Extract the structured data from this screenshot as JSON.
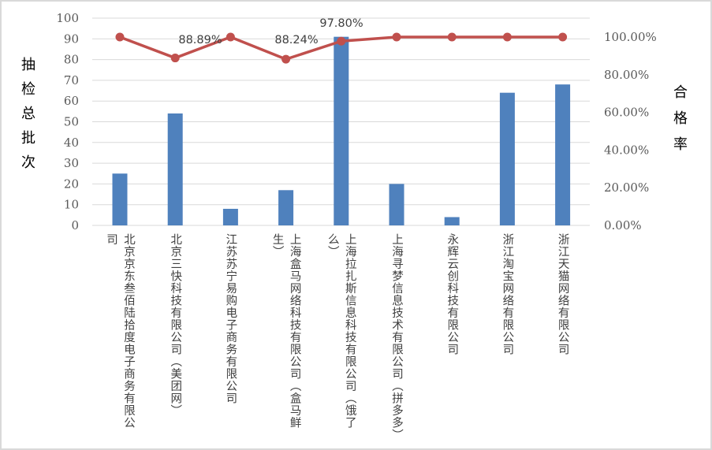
{
  "chart_data": {
    "type": "bar+line",
    "title": "",
    "categories": [
      "北京京东叁佰陆拾度电子商务有限公司",
      "北京三快科技有限公司（美团网）",
      "江苏苏宁易购电子商务有限公司",
      "上海盒马网络科技有限公司（盒马鲜生）",
      "上海拉扎斯信息科技有限公司（饿了么）",
      "上海寻梦信息技术有限公司（拼多多）",
      "永辉云创科技有限公司",
      "浙江淘宝网络有限公司",
      "浙江天猫网络有限公司"
    ],
    "series": [
      {
        "name": "抽检总批次",
        "type": "bar",
        "axis": "left",
        "color": "#4F81BD",
        "values": [
          25,
          54,
          8,
          17,
          91,
          20,
          4,
          64,
          68
        ]
      },
      {
        "name": "合格率",
        "type": "line",
        "axis": "right",
        "color": "#C0504D",
        "values": [
          100.0,
          88.89,
          100.0,
          88.24,
          97.8,
          100.0,
          100.0,
          100.0,
          100.0
        ],
        "data_labels": [
          "",
          "88.89%",
          "",
          "88.24%",
          "97.80%",
          "",
          "",
          "",
          ""
        ]
      }
    ],
    "ylabel": "抽检总批次",
    "ylabel_right": "合格率",
    "xlabel": "",
    "ylim": [
      0,
      100
    ],
    "yticks": [
      "0",
      "10",
      "20",
      "30",
      "40",
      "50",
      "60",
      "70",
      "80",
      "90",
      "100"
    ],
    "ylim_right": [
      0,
      100
    ],
    "yticks_right": [
      "0.00%",
      "20.00%",
      "40.00%",
      "60.00%",
      "80.00%",
      "100.00%"
    ],
    "grid": true,
    "legend": "none"
  },
  "axes": {
    "left_title_chars": [
      "抽",
      "检",
      "总",
      "批",
      "次"
    ],
    "right_title_chars": [
      "合",
      "格",
      "率"
    ]
  },
  "colors": {
    "bar": "#4F81BD",
    "line": "#C0504D",
    "grid": "#D9D9D9",
    "tick_text": "#595959"
  }
}
